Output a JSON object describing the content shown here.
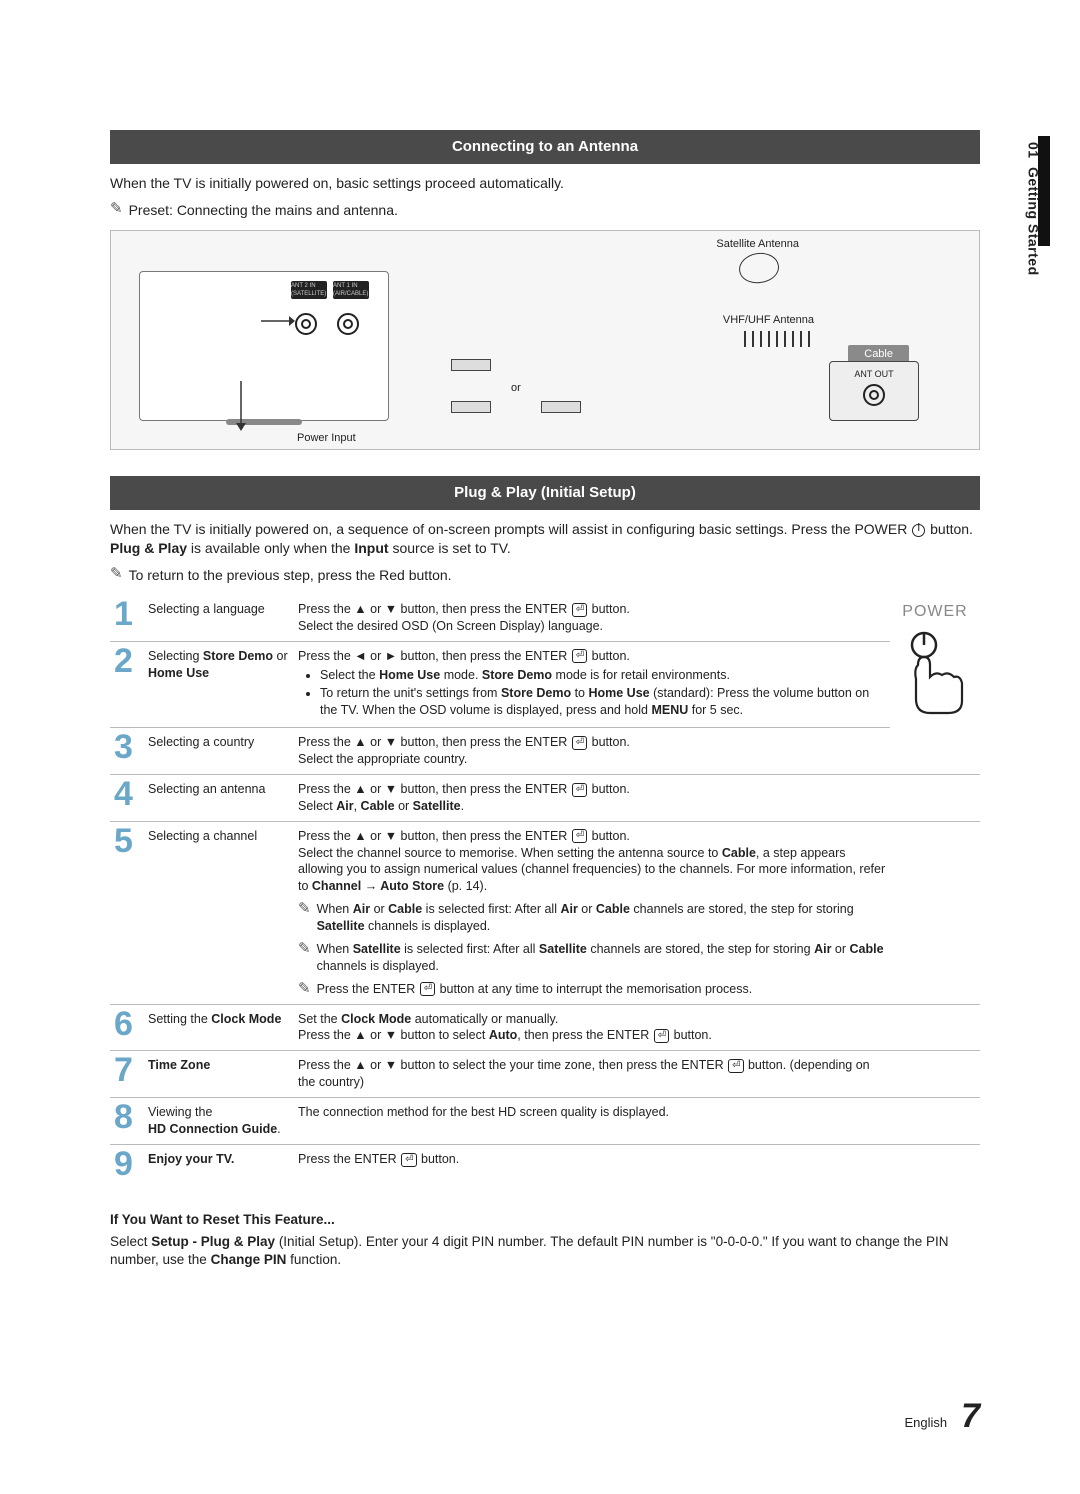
{
  "side": {
    "chapter": "01",
    "title": "Getting Started"
  },
  "section1": {
    "heading": "Connecting to an Antenna",
    "intro": "When the TV is initially powered on, basic settings proceed automatically.",
    "preset_note": "Preset: Connecting the mains and antenna.",
    "diagram": {
      "satellite": "Satellite Antenna",
      "vhf": "VHF/UHF Antenna",
      "cable": "Cable",
      "ant_out": "ANT OUT",
      "power_input": "Power Input",
      "or": "or",
      "port1": "ANT 2 IN\n(SATELLITE)",
      "port2": "ANT 1 IN\n(AIR/CABLE)"
    }
  },
  "section2": {
    "heading": "Plug & Play (Initial Setup)",
    "intro_a": "When the TV is initially powered on, a sequence of on-screen prompts will assist in configuring basic settings. Press the POWER ",
    "intro_b": " button. ",
    "intro_bold1": "Plug & Play",
    "intro_c": " is available only when the ",
    "intro_bold2": "Input",
    "intro_d": " source is set to TV.",
    "return_note": "To return to the previous step, press the Red button.",
    "power_label": "POWER"
  },
  "steps": [
    {
      "n": "1",
      "label_html": "Selecting a language",
      "desc_html": "Press the ▲ or ▼ button, then press the ENTER <span class='enter-glyph'>⏎</span> button.<br>Select the desired OSD (On Screen Display) language."
    },
    {
      "n": "2",
      "label_html": "Selecting <b>Store Demo</b> or <b>Home Use</b>",
      "desc_html": "Press the ◄ or ► button, then press the ENTER <span class='enter-glyph'>⏎</span> button.<ul><li>Select the <b>Home Use</b> mode. <b>Store Demo</b> mode is for retail environments.</li><li>To return the unit's settings from <b>Store Demo</b> to <b>Home Use</b> (standard): Press the volume button on the TV. When the OSD volume is displayed, press and hold <b>MENU</b> for 5 sec.</li></ul>"
    },
    {
      "n": "3",
      "label_html": "Selecting a country",
      "desc_html": "Press the ▲ or ▼ button, then press the ENTER <span class='enter-glyph'>⏎</span> button.<br>Select the appropriate country."
    },
    {
      "n": "4",
      "label_html": "Selecting an antenna",
      "desc_html": "Press the ▲ or ▼ button, then press the ENTER <span class='enter-glyph'>⏎</span> button.<br>Select <b>Air</b>, <b>Cable</b> or <b>Satellite</b>."
    },
    {
      "n": "5",
      "label_html": "Selecting a channel",
      "desc_html": "Press the ▲ or ▼ button, then press the ENTER <span class='enter-glyph'>⏎</span> button.<br>Select the channel source to memorise. When setting the antenna source to <b>Cable</b>, a step appears allowing you to assign numerical values (channel frequencies) to the channels. For more information, refer to <b>Channel → Auto Store</b> (p. 14).<div class='sub-note'><span class='note-icon'>✎</span><span>When <b>Air</b> or <b>Cable</b> is selected first: After all <b>Air</b> or <b>Cable</b> channels are stored, the step for storing <b>Satellite</b> channels is displayed.</span></div><div class='sub-note'><span class='note-icon'>✎</span><span>When <b>Satellite</b> is selected first: After all <b>Satellite</b> channels are stored, the step for storing <b>Air</b> or <b>Cable</b> channels is displayed.</span></div><div class='sub-note'><span class='note-icon'>✎</span><span>Press the ENTER <span class='enter-glyph'>⏎</span> button at any time to interrupt the memorisation process.</span></div>"
    },
    {
      "n": "6",
      "label_html": "Setting the <b>Clock Mode</b>",
      "desc_html": "Set the <b>Clock Mode</b> automatically or manually.<br>Press the ▲ or ▼ button to select <b>Auto</b>, then press the ENTER <span class='enter-glyph'>⏎</span> button."
    },
    {
      "n": "7",
      "label_html": "<b>Time Zone</b>",
      "desc_html": "Press the ▲ or ▼ button to select the your time zone, then press the ENTER <span class='enter-glyph'>⏎</span> button. (depending on the country)"
    },
    {
      "n": "8",
      "label_html": "Viewing the<br><b>HD Connection Guide</b>.",
      "desc_html": "The connection method for the best HD screen quality is displayed."
    },
    {
      "n": "9",
      "label_html": "<b>Enjoy your TV.</b>",
      "desc_html": "Press the ENTER <span class='enter-glyph'>⏎</span> button."
    }
  ],
  "reset": {
    "head": "If You Want to Reset This Feature...",
    "body_a": "Select ",
    "body_b1": "Setup - Plug & Play",
    "body_c": " (Initial Setup). Enter your 4 digit PIN number. The default PIN number is \"0-0-0-0.\" If you want to change the PIN number, use the ",
    "body_b2": "Change PIN",
    "body_d": " function."
  },
  "footer": {
    "lang": "English",
    "page": "7"
  },
  "colors": {
    "bar_bg": "#4a4a4a",
    "step_num": "#6aa7c8",
    "rule": "#bbbbbb",
    "diagram_bg": "#f6f6f6"
  }
}
